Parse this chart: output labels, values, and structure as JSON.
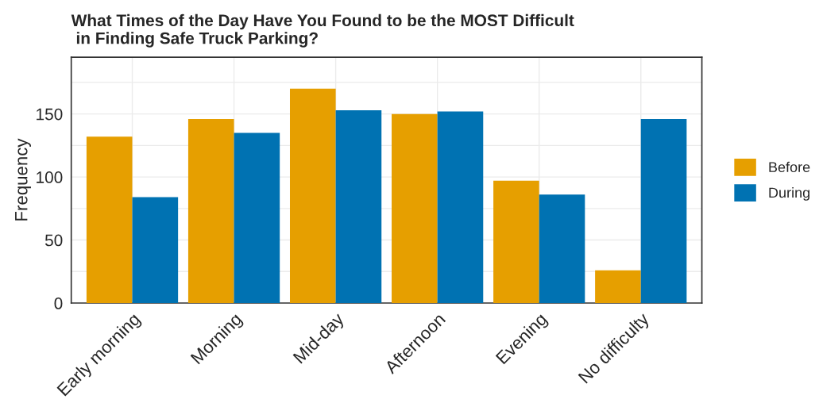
{
  "chart_data": {
    "type": "bar",
    "title": "What Times of the Day Have You Found to be the MOST Difficult\n in Finding Safe Truck Parking?",
    "ylabel": "Frequency",
    "categories": [
      "Early morning",
      "Morning",
      "Mid-day",
      "Afternoon",
      "Evening",
      "No difficulty"
    ],
    "series": [
      {
        "name": "Before",
        "color": "#e69f00",
        "values": [
          132,
          146,
          170,
          150,
          97,
          26
        ]
      },
      {
        "name": "During",
        "color": "#0072b2",
        "values": [
          84,
          135,
          153,
          152,
          86,
          146
        ]
      }
    ],
    "ylim": [
      0,
      195
    ],
    "yticks": [
      0,
      50,
      100,
      150
    ],
    "grid": true,
    "legend": "right"
  }
}
